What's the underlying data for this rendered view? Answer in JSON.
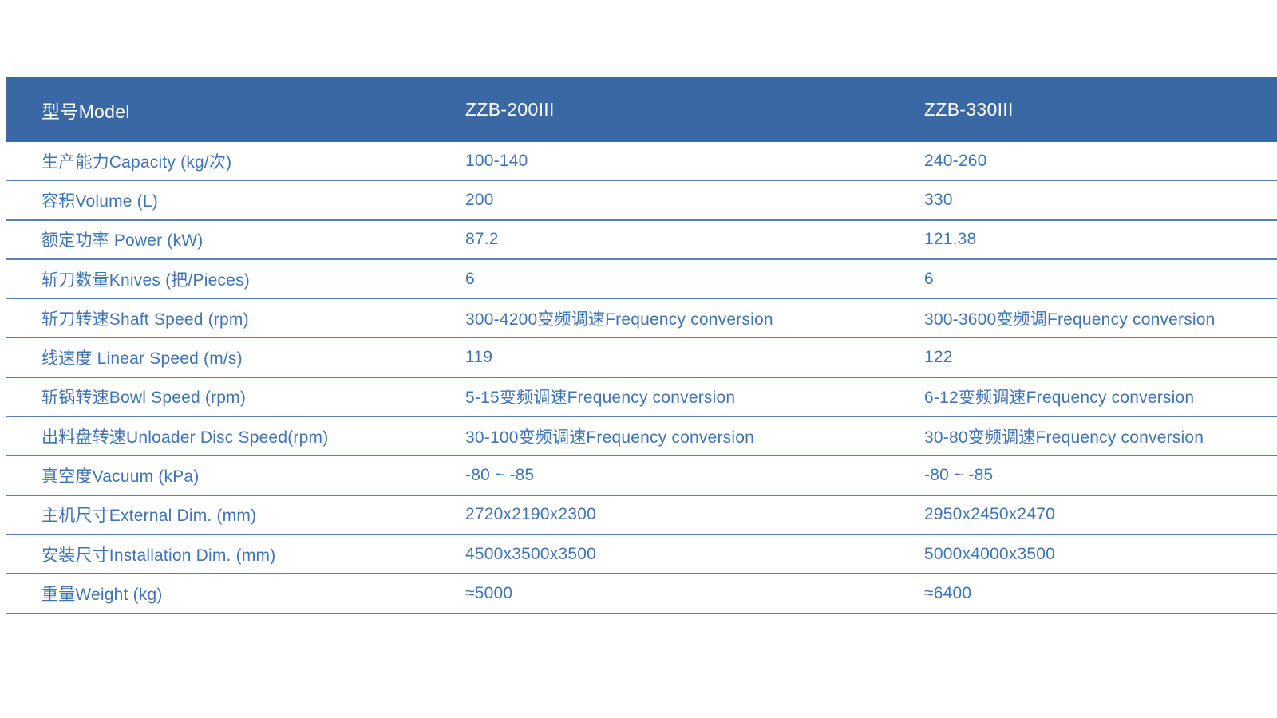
{
  "table": {
    "colors": {
      "header_background": "#3a68a4",
      "header_text": "#ffffff",
      "body_text": "#3f74b6",
      "divider": "#5b81b4"
    },
    "header": {
      "model_label": "型号Model",
      "model_1": "ZZB-200III",
      "model_2": "ZZB-330III"
    },
    "rows": [
      {
        "label": "生产能力Capacity (kg/次)",
        "col1": "100-140",
        "col2": "240-260"
      },
      {
        "label": "容积Volume (L)",
        "col1": "200",
        "col2": "330"
      },
      {
        "label": "额定功率 Power (kW)",
        "col1": "87.2",
        "col2": "121.38"
      },
      {
        "label": "斩刀数量Knives (把/Pieces)",
        "col1": "6",
        "col2": "6"
      },
      {
        "label": "斩刀转速Shaft Speed (rpm)",
        "col1": "300-4200变频调速Frequency conversion",
        "col2": "300-3600变频调Frequency conversion"
      },
      {
        "label": "线速度 Linear Speed (m/s)",
        "col1": "119",
        "col2": "122"
      },
      {
        "label": "斩锅转速Bowl Speed (rpm)",
        "col1": "5-15变频调速Frequency conversion",
        "col2": "6-12变频调速Frequency conversion"
      },
      {
        "label": "出料盘转速Unloader Disc Speed(rpm)",
        "col1": "30-100变频调速Frequency conversion",
        "col2": "30-80变频调速Frequency conversion"
      },
      {
        "label": "真空度Vacuum (kPa)",
        "col1": "-80 ~ -85",
        "col2": "-80 ~ -85"
      },
      {
        "label": "主机尺寸External Dim. (mm)",
        "col1": "2720x2190x2300",
        "col2": "2950x2450x2470"
      },
      {
        "label": "安装尺寸Installation Dim. (mm)",
        "col1": "4500x3500x3500",
        "col2": "5000x4000x3500"
      },
      {
        "label": "重量Weight (kg)",
        "col1": "≈5000",
        "col2": "≈6400"
      }
    ]
  }
}
